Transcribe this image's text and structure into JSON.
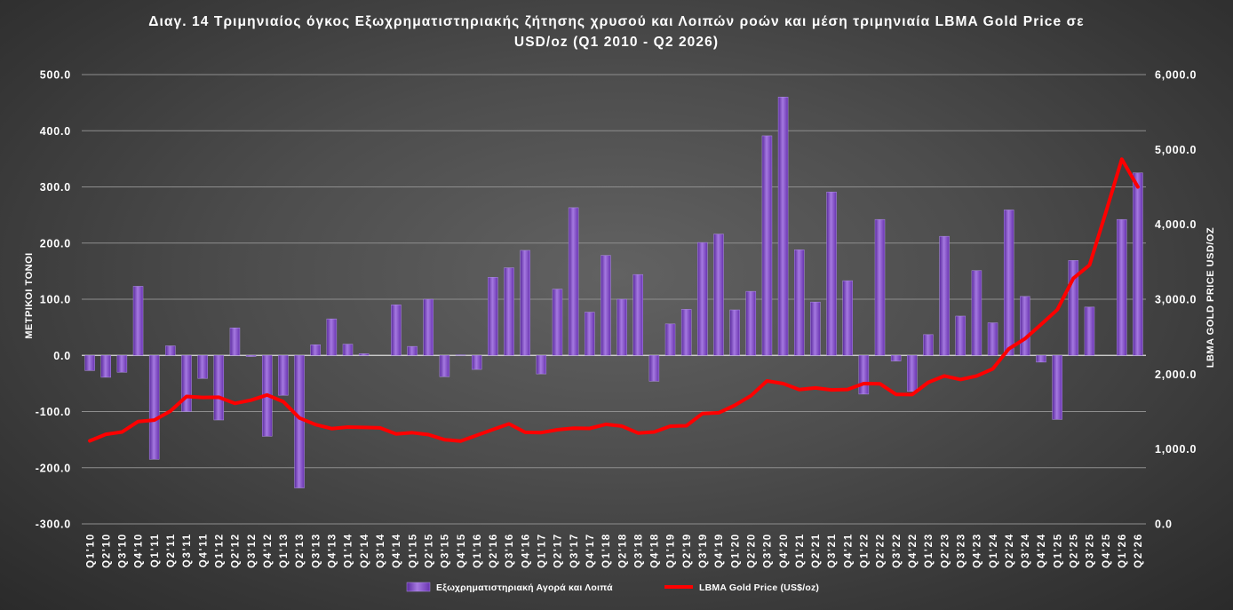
{
  "chart_data": {
    "type": "bar",
    "title": "Διαγ. 14 Τριμηνιαίος όγκος Εξωχρηματιστηριακής ζήτησης χρυσού και Λοιπών ροών και μέση τριμηνιαία LBMA Gold Price σε USD/oz (Q1 2010 - Q2 2026)",
    "ylabel": "ΜΕΤΡΙΚΟΙ ΤΟΝΟΙ",
    "y2label": "LBMA GOLD PRICE USD/OZ",
    "ylim": [
      -300,
      500
    ],
    "y2lim": [
      0,
      6000
    ],
    "y_ticks": [
      {
        "value": 500,
        "label": "500.0"
      },
      {
        "value": 400,
        "label": "400.0"
      },
      {
        "value": 300,
        "label": "300.0"
      },
      {
        "value": 200,
        "label": "200.0"
      },
      {
        "value": 100,
        "label": "100.0"
      },
      {
        "value": 0,
        "label": "0.0"
      },
      {
        "value": -100,
        "label": "-100.0"
      },
      {
        "value": -200,
        "label": "-200.0"
      },
      {
        "value": -300,
        "label": "-300.0"
      }
    ],
    "y2_ticks": [
      {
        "value": 6000,
        "label": "6,000.0"
      },
      {
        "value": 5000,
        "label": "5,000.0"
      },
      {
        "value": 4000,
        "label": "4,000.0"
      },
      {
        "value": 3000,
        "label": "3,000.0"
      },
      {
        "value": 2000,
        "label": "2,000.0"
      },
      {
        "value": 1000,
        "label": "1,000.0"
      },
      {
        "value": 0,
        "label": "0.0"
      }
    ],
    "grid": true,
    "legend": "bottom",
    "categories": [
      "Q1'10",
      "Q2'10",
      "Q3'10",
      "Q4'10",
      "Q1'11",
      "Q2'11",
      "Q3'11",
      "Q4'11",
      "Q1'12",
      "Q2'12",
      "Q3'12",
      "Q4'12",
      "Q1'13",
      "Q2'13",
      "Q3'13",
      "Q4'13",
      "Q1'14",
      "Q2'14",
      "Q3'14",
      "Q4'14",
      "Q1'15",
      "Q2'15",
      "Q3'15",
      "Q4'15",
      "Q1'16",
      "Q2'16",
      "Q3'16",
      "Q4'16",
      "Q1'17",
      "Q2'17",
      "Q3'17",
      "Q4'17",
      "Q1'18",
      "Q2'18",
      "Q3'18",
      "Q4'18",
      "Q1'19",
      "Q2'19",
      "Q3'19",
      "Q4'19",
      "Q1'20",
      "Q2'20",
      "Q3'20",
      "Q4'20",
      "Q1'21",
      "Q2'21",
      "Q3'21",
      "Q4'21",
      "Q1'22",
      "Q2'22",
      "Q3'22",
      "Q4'22",
      "Q1'23",
      "Q2'23",
      "Q3'23",
      "Q4'23",
      "Q1'24",
      "Q2'24",
      "Q3'24",
      "Q4'24",
      "Q1'25",
      "Q2'25",
      "Q3'25",
      "Q4'25",
      "Q1'26",
      "Q2'26"
    ],
    "series": [
      {
        "name": "Εξωχρηματιστηριακή Αγορά και Λοιπά",
        "type": "bar",
        "axis": "left",
        "color": "#7b3fc0",
        "values": [
          -27,
          -39,
          -30,
          123,
          -185,
          17,
          -100,
          -41,
          -115,
          49,
          -2,
          -144,
          -71,
          -236,
          19,
          65,
          20,
          3,
          0,
          90,
          16,
          100,
          -38,
          1,
          -25,
          139,
          156,
          187,
          -33,
          118,
          263,
          77,
          178,
          100,
          144,
          -46,
          56,
          82,
          201,
          216,
          81,
          114,
          391,
          460,
          188,
          95,
          291,
          133,
          -69,
          242,
          -10,
          -64,
          37,
          212,
          70,
          151,
          58,
          259,
          105,
          -12,
          -114,
          169,
          86,
          0,
          242,
          325
        ]
      },
      {
        "name": "LBMA Gold Price (US$/oz)",
        "type": "line",
        "axis": "right",
        "color": "#ff0000",
        "values": [
          1109,
          1197,
          1227,
          1367,
          1386,
          1506,
          1702,
          1688,
          1691,
          1609,
          1652,
          1722,
          1632,
          1415,
          1326,
          1272,
          1293,
          1288,
          1282,
          1201,
          1218,
          1192,
          1124,
          1106,
          1183,
          1260,
          1335,
          1222,
          1219,
          1257,
          1278,
          1275,
          1329,
          1306,
          1213,
          1227,
          1304,
          1310,
          1474,
          1483,
          1583,
          1711,
          1909,
          1874,
          1794,
          1816,
          1789,
          1795,
          1874,
          1871,
          1729,
          1726,
          1890,
          1976,
          1928,
          1976,
          2070,
          2338,
          2474,
          2663,
          2860,
          3280,
          3457,
          4150,
          4870,
          4500
        ]
      }
    ]
  }
}
